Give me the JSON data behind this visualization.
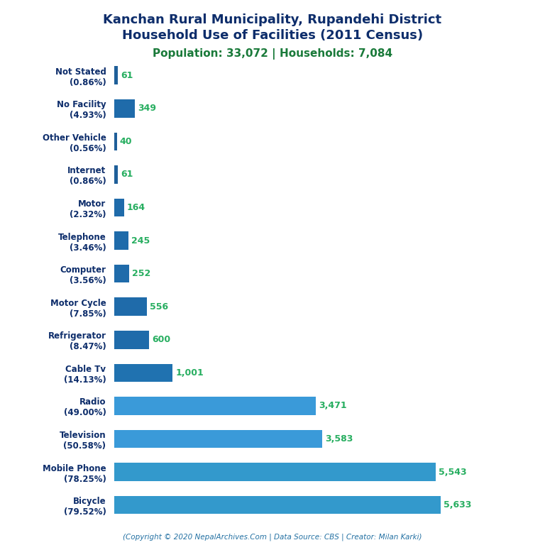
{
  "title_line1": "Kanchan Rural Municipality, Rupandehi District",
  "title_line2": "Household Use of Facilities (2011 Census)",
  "subtitle": "Population: 33,072 | Households: 7,084",
  "footer": "(Copyright © 2020 NepalArchives.Com | Data Source: CBS | Creator: Milan Karki)",
  "categories": [
    "Not Stated\n(0.86%)",
    "No Facility\n(4.93%)",
    "Other Vehicle\n(0.56%)",
    "Internet\n(0.86%)",
    "Motor\n(2.32%)",
    "Telephone\n(3.46%)",
    "Computer\n(3.56%)",
    "Motor Cycle\n(7.85%)",
    "Refrigerator\n(8.47%)",
    "Cable Tv\n(14.13%)",
    "Radio\n(49.00%)",
    "Television\n(50.58%)",
    "Mobile Phone\n(78.25%)",
    "Bicycle\n(79.52%)"
  ],
  "values": [
    61,
    349,
    40,
    61,
    164,
    245,
    252,
    556,
    600,
    1001,
    3471,
    3583,
    5543,
    5633
  ],
  "bar_colors": [
    "#1f5f99",
    "#1f6baa",
    "#1f5f99",
    "#1f5f99",
    "#1f6baa",
    "#1f6baa",
    "#1f6baa",
    "#1f6baa",
    "#1f6baa",
    "#2072b0",
    "#3a9ad9",
    "#3a9ad9",
    "#3399cc",
    "#3399cc"
  ],
  "title_color": "#0d2d6b",
  "subtitle_color": "#1a7a3a",
  "footer_color": "#2471a3",
  "value_color": "#27ae60",
  "label_color": "#0d2d6b",
  "background_color": "#ffffff",
  "xlim": [
    0,
    6300
  ]
}
